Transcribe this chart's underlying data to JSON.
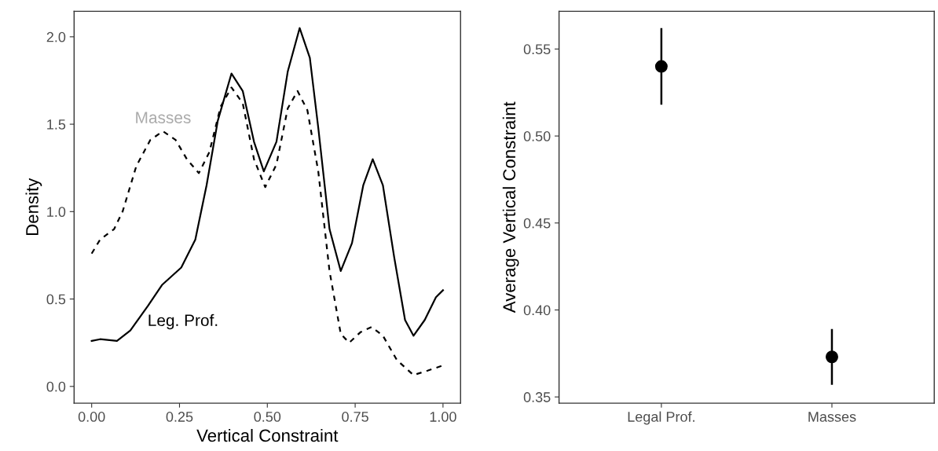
{
  "chart_data": [
    {
      "type": "line",
      "xlabel": "Vertical Constraint",
      "ylabel": "Density",
      "xlim": [
        -0.05,
        1.05
      ],
      "ylim": [
        -0.096,
        2.146
      ],
      "xticks": [
        {
          "value": 0,
          "label": "0.00"
        },
        0.25,
        {
          "value": 0.5,
          "label": "0.50"
        },
        0.75,
        {
          "value": 1,
          "label": "1.00"
        }
      ],
      "yticks": [
        {
          "value": 0,
          "label": "0.0"
        },
        0.5,
        {
          "value": 1,
          "label": "1.0"
        },
        1.5,
        {
          "value": 2,
          "label": "2.0"
        }
      ],
      "grid": false,
      "legend": false,
      "series": [
        {
          "name": "Leg. Prof.",
          "color": "#000000",
          "line_style": "solid",
          "x": [
            0,
            0.024,
            0.072,
            0.11,
            0.16,
            0.2,
            0.255,
            0.295,
            0.327,
            0.359,
            0.398,
            0.43,
            0.462,
            0.49,
            0.526,
            0.558,
            0.592,
            0.621,
            0.645,
            0.677,
            0.709,
            0.741,
            0.773,
            0.8,
            0.829,
            0.861,
            0.892,
            0.916,
            0.948,
            0.98,
            1.0
          ],
          "values": [
            0.26,
            0.27,
            0.26,
            0.32,
            0.46,
            0.58,
            0.68,
            0.84,
            1.15,
            1.52,
            1.79,
            1.69,
            1.4,
            1.23,
            1.4,
            1.8,
            2.05,
            1.88,
            1.48,
            0.9,
            0.66,
            0.82,
            1.15,
            1.3,
            1.15,
            0.74,
            0.38,
            0.29,
            0.38,
            0.51,
            0.55
          ]
        },
        {
          "name": "Masses",
          "color": "#000000",
          "line_style": "dashed",
          "x": [
            0,
            0.024,
            0.064,
            0.088,
            0.127,
            0.167,
            0.203,
            0.239,
            0.271,
            0.305,
            0.335,
            0.367,
            0.398,
            0.43,
            0.462,
            0.494,
            0.526,
            0.558,
            0.586,
            0.614,
            0.645,
            0.677,
            0.709,
            0.733,
            0.765,
            0.797,
            0.829,
            0.869,
            0.916,
            0.956,
            1.0
          ],
          "values": [
            0.76,
            0.84,
            0.9,
            1.0,
            1.26,
            1.41,
            1.46,
            1.41,
            1.3,
            1.22,
            1.34,
            1.6,
            1.71,
            1.62,
            1.3,
            1.14,
            1.27,
            1.59,
            1.69,
            1.58,
            1.23,
            0.66,
            0.3,
            0.25,
            0.31,
            0.34,
            0.29,
            0.15,
            0.065,
            0.09,
            0.12
          ]
        }
      ]
    },
    {
      "type": "scatter",
      "ylabel": "Average Vertical Constraint",
      "categories": [
        "Legal Prof.",
        "Masses"
      ],
      "values": [
        0.54,
        0.373
      ],
      "errors": [
        [
          0.518,
          0.562
        ],
        [
          0.357,
          0.389
        ]
      ],
      "color": "#000000",
      "marker": "circle",
      "ylim": [
        0.3464,
        0.5717
      ],
      "yticks": [
        0.35,
        {
          "value": 0.4,
          "label": "0.40"
        },
        0.45,
        {
          "value": 0.5,
          "label": "0.50"
        },
        0.55
      ],
      "grid": false
    }
  ]
}
